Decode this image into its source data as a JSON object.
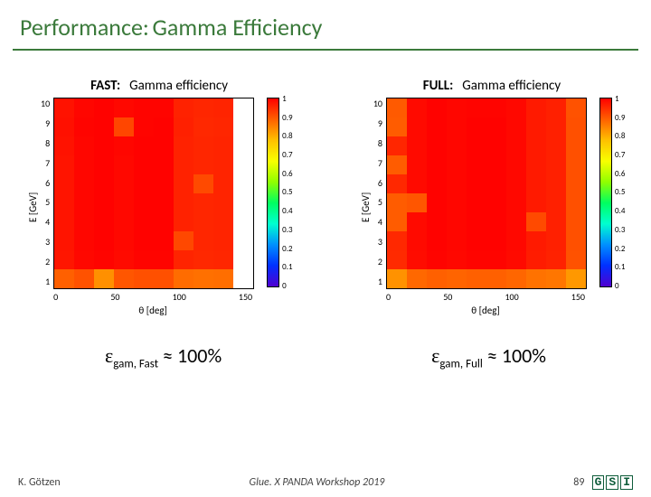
{
  "title": {
    "part1": "Performance:",
    "part2": "Gamma Efficiency",
    "part1_color": "#3b7a3b",
    "part2_color": "#3b7a3b",
    "underline_color": "#3b7a3b"
  },
  "charts": {
    "fast": {
      "label": "FAST:",
      "title": "Gamma efficiency",
      "x_axis_label": "θ [deg]",
      "y_axis_label": "E [GeV]",
      "x_ticks": [
        "0",
        "50",
        "100",
        "150"
      ],
      "y_ticks": [
        "10",
        "9",
        "8",
        "7",
        "6",
        "5",
        "4",
        "3",
        "2",
        "1"
      ],
      "nx": 10,
      "ny": 10,
      "xlim": [
        0,
        160
      ],
      "ylim": [
        0,
        10
      ],
      "colorbar_ticks": [
        "1",
        "0.9",
        "0.8",
        "0.7",
        "0.6",
        "0.5",
        "0.4",
        "0.3",
        "0.2",
        "0.1",
        "0"
      ],
      "colormap_stops": [
        "#ff0000",
        "#ff6000",
        "#ffc000",
        "#f8ff00",
        "#90ff00",
        "#00ff60",
        "#00ffd0",
        "#0090ff",
        "#0030ff",
        "#5000d0"
      ],
      "cell_colors": [
        [
          "#ff1200",
          "#ff0600",
          "#ff0200",
          "#ff0800",
          "#ff0400",
          "#ff0400",
          "#ff2200",
          "#ff2600",
          "#ff2400",
          "#ffffff"
        ],
        [
          "#ff1000",
          "#ff0400",
          "#ff0200",
          "#ff4600",
          "#ff0400",
          "#ff0200",
          "#ff2000",
          "#ff2800",
          "#ff2600",
          "#ffffff"
        ],
        [
          "#ff1200",
          "#ff0600",
          "#ff0200",
          "#ff0600",
          "#ff0200",
          "#ff0200",
          "#ff2200",
          "#ff2600",
          "#ff2400",
          "#ffffff"
        ],
        [
          "#ff1400",
          "#ff0600",
          "#ff0200",
          "#ff0800",
          "#ff0200",
          "#ff0200",
          "#ff2200",
          "#ff2600",
          "#ff2400",
          "#ffffff"
        ],
        [
          "#ff1400",
          "#ff0600",
          "#ff0200",
          "#ff0800",
          "#ff0200",
          "#ff0200",
          "#ff2200",
          "#ff4a00",
          "#ff2400",
          "#ffffff"
        ],
        [
          "#ff1400",
          "#ff0600",
          "#ff0200",
          "#ff0800",
          "#ff0200",
          "#ff0200",
          "#ff2200",
          "#ff2600",
          "#ff2400",
          "#ffffff"
        ],
        [
          "#ff1400",
          "#ff0600",
          "#ff0200",
          "#ff0800",
          "#ff0200",
          "#ff0200",
          "#ff2200",
          "#ff2600",
          "#ff2400",
          "#ffffff"
        ],
        [
          "#ff1400",
          "#ff0600",
          "#ff0200",
          "#ff0800",
          "#ff0200",
          "#ff0200",
          "#ff4800",
          "#ff2600",
          "#ff2400",
          "#ffffff"
        ],
        [
          "#ff1600",
          "#ff0800",
          "#ff0400",
          "#ff0a00",
          "#ff0400",
          "#ff0400",
          "#ff2400",
          "#ff2800",
          "#ff2600",
          "#ffffff"
        ],
        [
          "#ff6000",
          "#ff5200",
          "#ff9000",
          "#ff5600",
          "#ff5000",
          "#ff5000",
          "#ff6c00",
          "#ff7000",
          "#ff6e00",
          "#ffffff"
        ]
      ]
    },
    "full": {
      "label": "FULL:",
      "title": "Gamma efficiency",
      "x_axis_label": "θ [deg]",
      "y_axis_label": "E [GeV]",
      "x_ticks": [
        "0",
        "50",
        "100",
        "150"
      ],
      "y_ticks": [
        "10",
        "9",
        "8",
        "7",
        "6",
        "5",
        "4",
        "3",
        "2",
        "1"
      ],
      "nx": 10,
      "ny": 10,
      "xlim": [
        0,
        160
      ],
      "ylim": [
        0,
        10
      ],
      "colorbar_ticks": [
        "1",
        "0.9",
        "0.8",
        "0.7",
        "0.6",
        "0.5",
        "0.4",
        "0.3",
        "0.2",
        "0.1",
        "0"
      ],
      "colormap_stops": [
        "#ff0000",
        "#ff6000",
        "#ffc000",
        "#f8ff00",
        "#90ff00",
        "#00ff60",
        "#00ffd0",
        "#0090ff",
        "#0030ff",
        "#5000d0"
      ],
      "cell_colors": [
        [
          "#ff5a00",
          "#ff0a00",
          "#ff0200",
          "#ff0600",
          "#ff0400",
          "#ff0400",
          "#ff0800",
          "#ff1a00",
          "#ff2000",
          "#ff5200"
        ],
        [
          "#ff5c00",
          "#ff0a00",
          "#ff0200",
          "#ff0600",
          "#ff0200",
          "#ff0200",
          "#ff0800",
          "#ff1a00",
          "#ff2000",
          "#ff5000"
        ],
        [
          "#ff2600",
          "#ff0a00",
          "#ff0200",
          "#ff0600",
          "#ff0200",
          "#ff0200",
          "#ff0800",
          "#ff1a00",
          "#ff2000",
          "#ff5000"
        ],
        [
          "#ff5c00",
          "#ff0a00",
          "#ff0200",
          "#ff0600",
          "#ff0200",
          "#ff0200",
          "#ff0800",
          "#ff1a00",
          "#ff2000",
          "#ff5000"
        ],
        [
          "#ff2800",
          "#ff0a00",
          "#ff0200",
          "#ff0600",
          "#ff0200",
          "#ff0200",
          "#ff0800",
          "#ff1a00",
          "#ff2000",
          "#ff5000"
        ],
        [
          "#ff5c00",
          "#ff5600",
          "#ff0200",
          "#ff0600",
          "#ff0200",
          "#ff0200",
          "#ff0800",
          "#ff1a00",
          "#ff2000",
          "#ff5000"
        ],
        [
          "#ff5c00",
          "#ff0a00",
          "#ff0200",
          "#ff0600",
          "#ff0200",
          "#ff0200",
          "#ff0800",
          "#ff4a00",
          "#ff2000",
          "#ff5000"
        ],
        [
          "#ff2800",
          "#ff0a00",
          "#ff0200",
          "#ff0600",
          "#ff0200",
          "#ff0200",
          "#ff0800",
          "#ff1a00",
          "#ff2000",
          "#ff5000"
        ],
        [
          "#ff2a00",
          "#ff0c00",
          "#ff0400",
          "#ff0800",
          "#ff0400",
          "#ff0400",
          "#ff0a00",
          "#ff1c00",
          "#ff2200",
          "#ff5200"
        ],
        [
          "#ff9200",
          "#ff6800",
          "#ff6000",
          "#ff6400",
          "#ff6000",
          "#ff6000",
          "#ff6600",
          "#ff7200",
          "#ff7600",
          "#ff9800"
        ]
      ]
    }
  },
  "efficiency": {
    "fast": {
      "symbol": "ε",
      "sub": "gam, Fast",
      "approx": "≈",
      "value": "100%"
    },
    "full": {
      "symbol": "ε",
      "sub": "gam, Full",
      "approx": "≈",
      "value": "100%"
    }
  },
  "footer": {
    "author": "K. Götzen",
    "event": "Glue. X PANDA Workshop 2019",
    "page": "89",
    "logo": [
      "G",
      "S",
      "I"
    ]
  },
  "style": {
    "plot_bg": "#ffffff",
    "axis_color": "#000000",
    "tick_fontsize": 10,
    "label_fontsize": 11
  }
}
